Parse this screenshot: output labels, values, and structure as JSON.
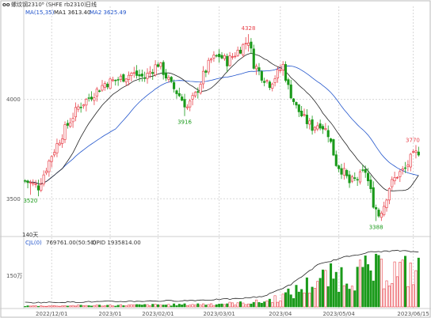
{
  "header": {
    "icon_glyph": "oo",
    "title": "螺纹钢2310⁸ (SHFE rb2310)",
    "period": "日线",
    "ma_legend_label": "MA(15,35)",
    "ma1_label": "MA1 3613.40",
    "ma2_label": "MA2 3625.49"
  },
  "volume_header": {
    "legend_label": "CJL(0)",
    "vol_label": "769761.00(50:50)",
    "opid_label": "OPID 1935814.00"
  },
  "colors": {
    "up": "#e8424b",
    "down": "#1a9a1a",
    "ma1": "#222222",
    "ma2": "#2255cc",
    "grid": "#d7d7d7",
    "axis_text": "#555555",
    "high_label": "#e8424b",
    "low_label": "#1a9a1a"
  },
  "chart_data": {
    "type": "candlestick",
    "price_axis": {
      "min": 3330,
      "max": 4420,
      "ticks": [
        3500,
        4000
      ],
      "tick_labels": [
        "3500",
        "4000"
      ]
    },
    "volume_axis": {
      "tick_label": "150万"
    },
    "x_ticks": [
      "2022/12/01",
      "2023/01",
      "2023/02/01",
      "2023/03/01",
      "2023/04",
      "2023/05/04",
      "2023/06/15"
    ],
    "x_tick_index": [
      10,
      32,
      50,
      73,
      96,
      118,
      146
    ],
    "annotations": {
      "high": {
        "label": "4328",
        "index": 84
      },
      "low": {
        "label": "3388",
        "index": 132
      },
      "left_low": {
        "label": "3520",
        "index": 2
      },
      "mid_low": {
        "label": "3916",
        "index": 60
      },
      "last_high": {
        "label": "3770",
        "index": 147
      }
    },
    "days_label": "140天",
    "ma_periods": [
      15,
      35
    ],
    "anchors": [
      [
        0,
        3590
      ],
      [
        5,
        3560
      ],
      [
        10,
        3720
      ],
      [
        15,
        3850
      ],
      [
        20,
        3960
      ],
      [
        25,
        4020
      ],
      [
        30,
        4080
      ],
      [
        35,
        4100
      ],
      [
        40,
        4130
      ],
      [
        45,
        4110
      ],
      [
        50,
        4180
      ],
      [
        52,
        4140
      ],
      [
        55,
        4070
      ],
      [
        58,
        4020
      ],
      [
        61,
        3960
      ],
      [
        64,
        4020
      ],
      [
        67,
        4120
      ],
      [
        70,
        4200
      ],
      [
        73,
        4220
      ],
      [
        76,
        4190
      ],
      [
        79,
        4230
      ],
      [
        82,
        4270
      ],
      [
        84,
        4300
      ],
      [
        86,
        4180
      ],
      [
        89,
        4120
      ],
      [
        92,
        4080
      ],
      [
        95,
        4130
      ],
      [
        97,
        4170
      ],
      [
        99,
        4060
      ],
      [
        102,
        3960
      ],
      [
        105,
        3900
      ],
      [
        108,
        3860
      ],
      [
        111,
        3880
      ],
      [
        114,
        3830
      ],
      [
        117,
        3680
      ],
      [
        120,
        3630
      ],
      [
        122,
        3580
      ],
      [
        125,
        3600
      ],
      [
        128,
        3640
      ],
      [
        131,
        3480
      ],
      [
        133,
        3420
      ],
      [
        135,
        3470
      ],
      [
        137,
        3560
      ],
      [
        140,
        3620
      ],
      [
        143,
        3650
      ],
      [
        145,
        3700
      ],
      [
        148,
        3740
      ]
    ],
    "volume_envelope": [
      [
        0,
        0.02
      ],
      [
        20,
        0.03
      ],
      [
        40,
        0.04
      ],
      [
        60,
        0.05
      ],
      [
        80,
        0.08
      ],
      [
        90,
        0.12
      ],
      [
        100,
        0.3
      ],
      [
        110,
        0.6
      ],
      [
        120,
        0.72
      ],
      [
        130,
        0.8
      ],
      [
        140,
        0.82
      ],
      [
        148,
        0.8
      ]
    ]
  }
}
